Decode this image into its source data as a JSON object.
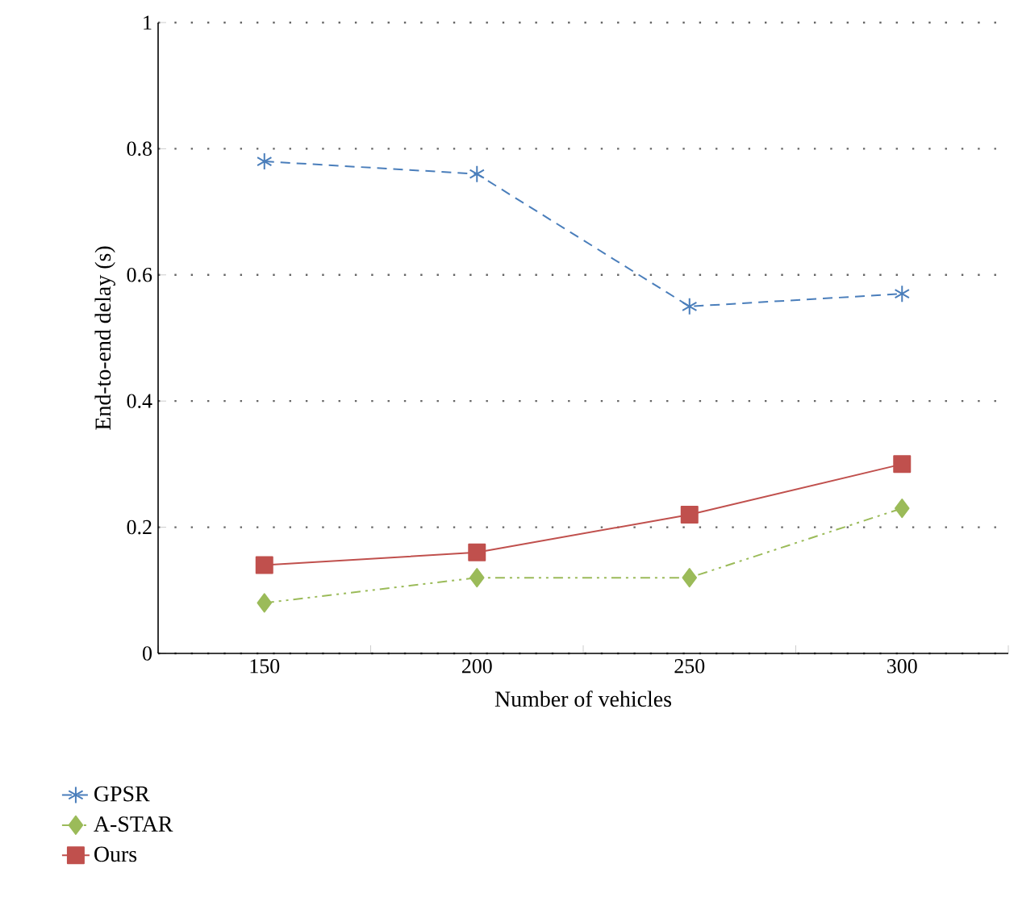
{
  "chart_data": {
    "type": "line",
    "xlabel": "Number of vehicles",
    "ylabel": "End-to-end delay (s)",
    "categories": [
      "150",
      "200",
      "250",
      "300"
    ],
    "series": [
      {
        "name": "GPSR",
        "color": "#4a7ebb",
        "values": [
          0.78,
          0.76,
          0.55,
          0.57
        ],
        "marker": "cross",
        "line_style": "dashed"
      },
      {
        "name": "A-STAR",
        "color": "#9bbb59",
        "values": [
          0.08,
          0.12,
          0.12,
          0.23
        ],
        "marker": "diamond",
        "line_style": "dashdot"
      },
      {
        "name": "Ours",
        "color": "#c0504d",
        "values": [
          0.14,
          0.16,
          0.22,
          0.3
        ],
        "marker": "square",
        "line_style": "solid"
      }
    ],
    "ylim": [
      0,
      1
    ],
    "yticks": [
      0,
      0.2,
      0.4,
      0.6,
      0.8,
      1
    ],
    "grid": "y",
    "legend": "bottom left"
  }
}
